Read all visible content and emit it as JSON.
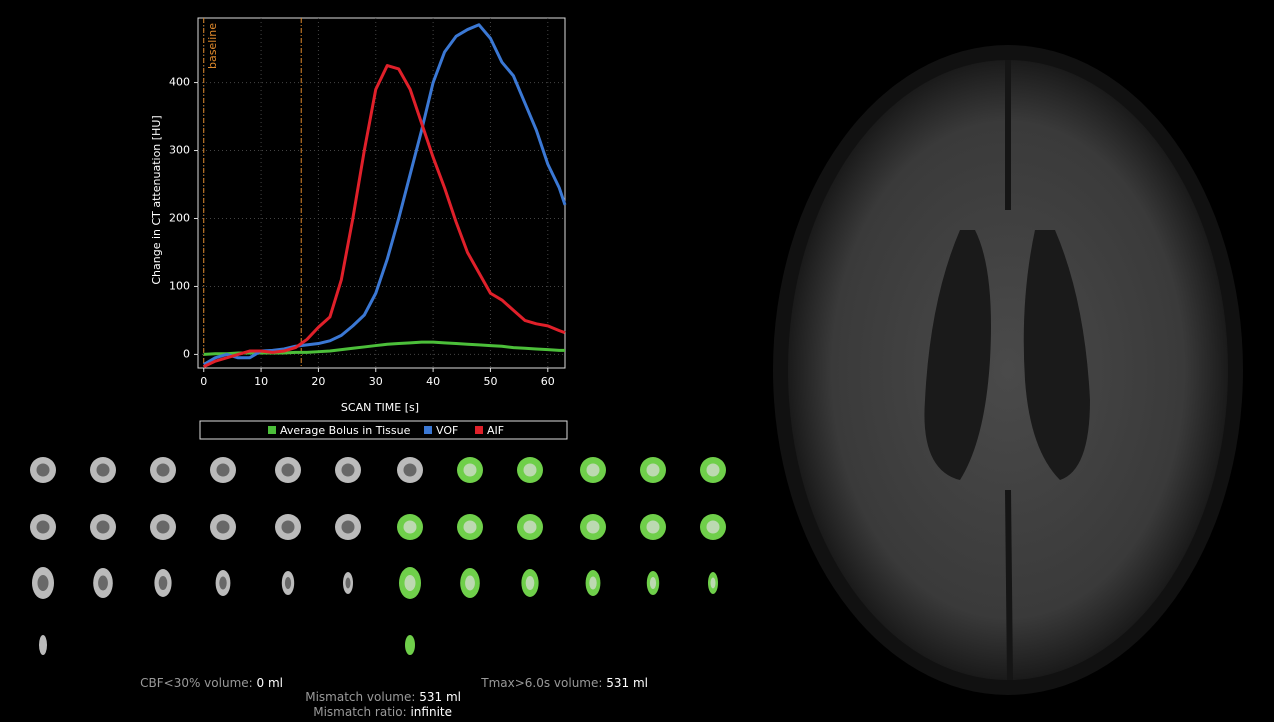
{
  "chart_data": {
    "type": "line",
    "y_label": "Change in CT attenuation [HU]",
    "x_label": "SCAN TIME [s]",
    "annotation": "baseline",
    "markers": [
      0,
      17
    ],
    "marker_color": "#e08a2c",
    "x": [
      0,
      2,
      4,
      6,
      8,
      10,
      12,
      14,
      16,
      18,
      20,
      22,
      24,
      26,
      28,
      30,
      32,
      34,
      36,
      38,
      40,
      42,
      44,
      46,
      48,
      50,
      52,
      54,
      56,
      58,
      60,
      62,
      63
    ],
    "series": [
      {
        "name": "Average Bolus in Tissue",
        "color": "#4cbf3a",
        "values": [
          0,
          1,
          1,
          2,
          2,
          2,
          2,
          2,
          3,
          3,
          4,
          5,
          7,
          9,
          11,
          13,
          15,
          16,
          17,
          18,
          18,
          17,
          16,
          15,
          14,
          13,
          12,
          10,
          9,
          8,
          7,
          6,
          6
        ]
      },
      {
        "name": "VOF",
        "color": "#3b78d4",
        "values": [
          -15,
          -5,
          0,
          -5,
          -5,
          5,
          6,
          8,
          12,
          14,
          16,
          20,
          28,
          42,
          58,
          90,
          140,
          200,
          265,
          330,
          400,
          445,
          468,
          478,
          485,
          465,
          430,
          410,
          370,
          330,
          280,
          245,
          220
        ]
      },
      {
        "name": "AIF",
        "color": "#e0202a",
        "values": [
          -18,
          -10,
          -5,
          0,
          5,
          5,
          3,
          5,
          10,
          22,
          40,
          55,
          110,
          200,
          300,
          390,
          425,
          420,
          390,
          340,
          290,
          245,
          195,
          150,
          120,
          90,
          80,
          65,
          50,
          45,
          42,
          35,
          32
        ]
      }
    ],
    "xlim": [
      -1,
      63
    ],
    "xticks": [
      0,
      10,
      20,
      30,
      40,
      50,
      60
    ],
    "ylim": [
      -20,
      495
    ],
    "yticks": [
      0,
      100,
      200,
      300,
      400
    ],
    "grid": true
  },
  "stats": [
    {
      "label": "CBF<30% volume:",
      "value": "0 ml"
    },
    {
      "label": "Tmax>6.0s volume:",
      "value": "531 ml"
    },
    {
      "label": "Mismatch volume:",
      "value": "531 ml"
    },
    {
      "label": "Mismatch ratio:",
      "value": "infinite"
    }
  ]
}
